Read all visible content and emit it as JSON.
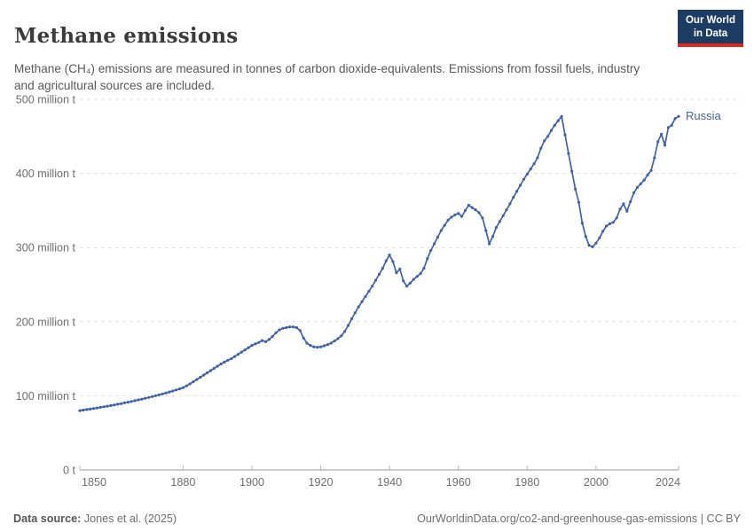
{
  "header": {
    "title": "Methane emissions",
    "subtitle": "Methane (CH₄) emissions are measured in tonnes of carbon dioxide-equivalents. Emissions from fossil fuels, industry and agricultural sources are included.",
    "logo": {
      "line1": "Our World",
      "line2": "in Data",
      "bg_color": "#1d3c63",
      "accent_color": "#e0261c"
    }
  },
  "chart_data": {
    "type": "line",
    "title": "Methane emissions",
    "unit": "million tonnes of CO₂-equivalents",
    "x_start": 1850,
    "x_end": 2024,
    "x_ticks": [
      1850,
      1880,
      1900,
      1920,
      1940,
      1960,
      1980,
      2000,
      2024
    ],
    "ylim": [
      0,
      500
    ],
    "grid": true,
    "legend_position": "end-of-line",
    "y_ticks": [
      {
        "value": 0,
        "label": "0 t"
      },
      {
        "value": 100,
        "label": "100 million t"
      },
      {
        "value": 200,
        "label": "200 million t"
      },
      {
        "value": 300,
        "label": "300 million t"
      },
      {
        "value": 400,
        "label": "400 million t"
      },
      {
        "value": 500,
        "label": "500 million t"
      }
    ],
    "series": [
      {
        "name": "Russia",
        "color": "#4262a8",
        "values": [
          80,
          80.7,
          81.4,
          82.1,
          82.9,
          83.6,
          84.4,
          85.2,
          86,
          86.9,
          87.7,
          88.6,
          89.5,
          90.5,
          91.4,
          92.4,
          93.4,
          94.5,
          95.5,
          96.6,
          97.7,
          98.9,
          100.1,
          101.3,
          102.5,
          103.8,
          105.1,
          106.5,
          107.9,
          109.3,
          111,
          113.5,
          116,
          119,
          122,
          125,
          128,
          131,
          134,
          137,
          140,
          143,
          145.5,
          148,
          150,
          153,
          156,
          159,
          162,
          165,
          168,
          170,
          172,
          174.5,
          173,
          176,
          180,
          185,
          189,
          191,
          192,
          193,
          193,
          192,
          188,
          178,
          171,
          168,
          166,
          165.5,
          166,
          167.5,
          169,
          171,
          174,
          177,
          181,
          187,
          195,
          204,
          212,
          220,
          227,
          234,
          241,
          248,
          256,
          264,
          272,
          282,
          290,
          281,
          266,
          271,
          255,
          248,
          252,
          257,
          261,
          265,
          272,
          285,
          296,
          305,
          314,
          323,
          330,
          337,
          341,
          344,
          346,
          342,
          350,
          357,
          354,
          351,
          347,
          340,
          323,
          305,
          315,
          327,
          335,
          343,
          351,
          359,
          368,
          376,
          384,
          392,
          399,
          406,
          413,
          421,
          434,
          444,
          450,
          458,
          465,
          471,
          477,
          452,
          427,
          403,
          379,
          361,
          333,
          315,
          303,
          301,
          306,
          313,
          322,
          329,
          332,
          334,
          340,
          352,
          359,
          349,
          362,
          374,
          381,
          386,
          391,
          398,
          404,
          421,
          443,
          453,
          438,
          462,
          465,
          474,
          477
        ]
      }
    ]
  },
  "footer": {
    "data_source_label": "Data source:",
    "data_source_value": " Jones et al. (2025)",
    "right_text": "OurWorldinData.org/co2-and-greenhouse-gas-emissions | CC BY"
  }
}
